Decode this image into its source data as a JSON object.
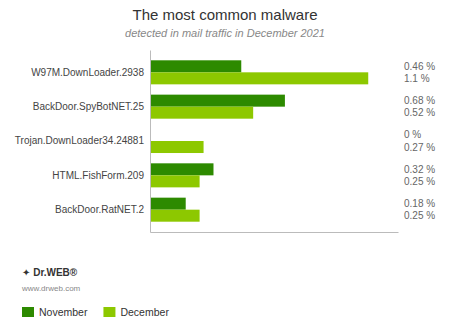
{
  "chart_data": {
    "type": "bar",
    "orientation": "horizontal",
    "title": "The most common malware",
    "subtitle": "detected in mail traffic in December 2021",
    "categories": [
      "W97M.DownLoader.2938",
      "BackDoor.SpyBotNET.25",
      "Trojan.DownLoader34.24881",
      "HTML.FishForm.209",
      "BackDoor.RatNET.2"
    ],
    "series": [
      {
        "name": "November",
        "color": "#2d8a00",
        "values": [
          0.46,
          0.68,
          0.0,
          0.32,
          0.18
        ],
        "value_labels": [
          "0.46 %",
          "0.68 %",
          "0 %",
          "0.32 %",
          "0.18 %"
        ]
      },
      {
        "name": "December",
        "color": "#8dc800",
        "values": [
          1.1,
          0.52,
          0.27,
          0.25,
          0.25
        ],
        "value_labels": [
          "1.1 %",
          "0.52 %",
          "0.27 %",
          "0.25 %",
          "0.25 %"
        ]
      }
    ],
    "xlim": [
      0,
      1.25
    ],
    "grid": false,
    "legend": "lower left",
    "data_labels": true,
    "tick_labels": "y",
    "annotations": [
      "✦ Dr.WEB®",
      "www.drweb.com"
    ]
  }
}
